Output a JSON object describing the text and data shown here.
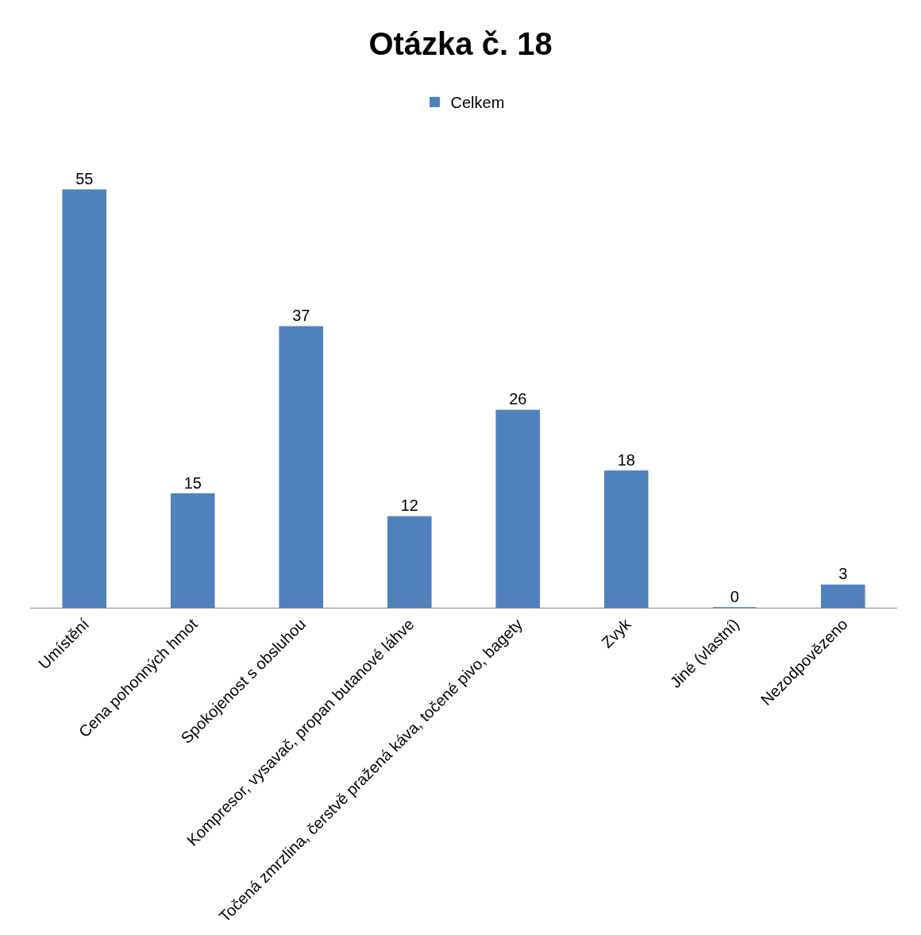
{
  "chart_data": {
    "type": "bar",
    "title": "Otázka č. 18",
    "categories": [
      "Umístění",
      "Cena pohonných hmot",
      "Spokojenost s obsluhou",
      "Kompresor, vysavač, propan butanové láhve",
      "Točená zmrzlina, čerstvě pražená káva, točené pivo, bagety",
      "Zvyk",
      "Jiné (vlastní)",
      "Nezodpovězeno"
    ],
    "series": [
      {
        "name": "Celkem",
        "color": "#4f81bd",
        "values": [
          55,
          15,
          37,
          12,
          26,
          18,
          0,
          3
        ]
      }
    ],
    "data_labels": true,
    "legend": "top",
    "tick_labels": "x"
  }
}
